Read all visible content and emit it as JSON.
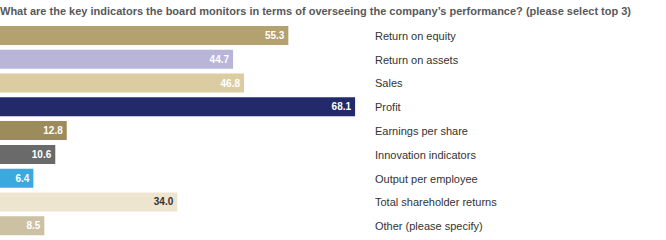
{
  "chart_data": {
    "type": "bar",
    "title": "What are the key indicators the board monitors in terms of overseeing the company’s performance? (please select top 3)",
    "orientation": "horizontal",
    "categories": [
      "Return on equity",
      "Return on assets",
      "Sales",
      "Profit",
      "Earnings per share",
      "Innovation indicators",
      "Output per employee",
      "Total shareholder returns",
      "Other (please specify)"
    ],
    "values": [
      55.3,
      44.7,
      46.8,
      68.1,
      12.8,
      10.6,
      6.4,
      34.0,
      8.5
    ],
    "value_labels": [
      "55.3",
      "44.7",
      "46.8",
      "68.1",
      "12.8",
      "10.6",
      "6.4",
      "34.0",
      "8.5"
    ],
    "colors": [
      "#b4a170",
      "#b9b5d9",
      "#dccca2",
      "#232a6c",
      "#9c8b5b",
      "#6a6a6a",
      "#3ba9dd",
      "#eee5d0",
      "#cdc1a3"
    ],
    "xlim": [
      0,
      70
    ],
    "data_labels": true,
    "tick_labels": "y"
  }
}
